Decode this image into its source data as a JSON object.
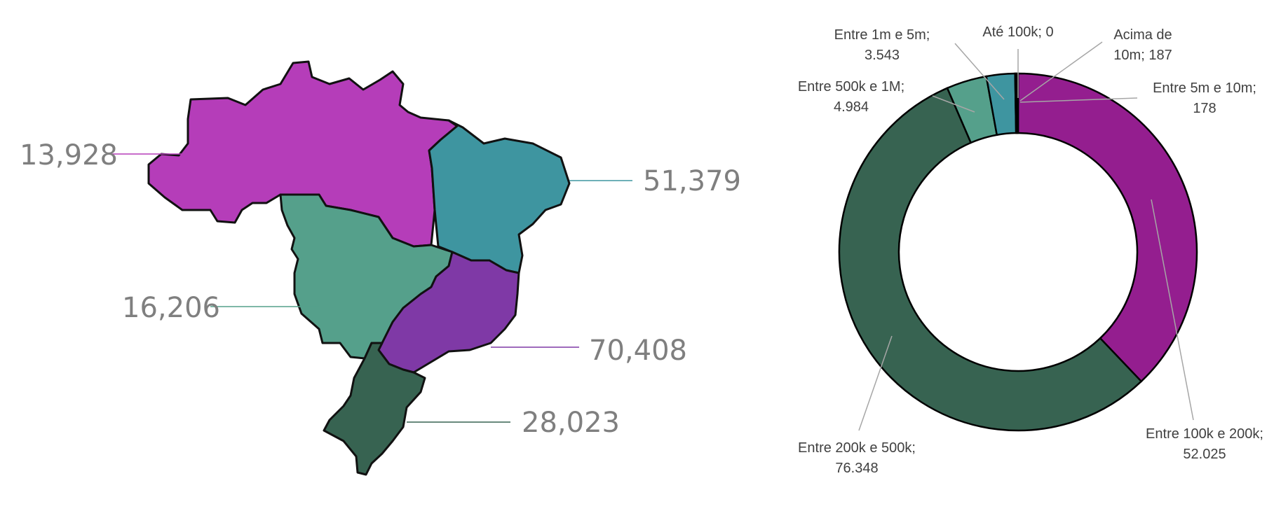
{
  "colors": {
    "norte": "#b53db9",
    "nordeste": "#3e95a0",
    "centro_oeste": "#55a08b",
    "sudeste": "#7f39a6",
    "sul": "#376351",
    "leader_gray": "#a6a6a6"
  },
  "chart_data": [
    {
      "type": "map",
      "title": "",
      "regions": [
        {
          "key": "norte",
          "value": "13,928",
          "color": "#b53db9"
        },
        {
          "key": "nordeste",
          "value": "51,379",
          "color": "#3e95a0"
        },
        {
          "key": "centro_oeste",
          "value": "16,206",
          "color": "#55a08b"
        },
        {
          "key": "sudeste",
          "value": "70,408",
          "color": "#7f39a6"
        },
        {
          "key": "sul",
          "value": "28,023",
          "color": "#376351"
        }
      ]
    },
    {
      "type": "pie",
      "title": "",
      "donut": true,
      "slices": [
        {
          "category": "Até 100k",
          "value": 0,
          "label_lines": [
            "Até 100k; 0"
          ],
          "color": "#7030a0"
        },
        {
          "category": "Entre 100k e 200k",
          "value": 52025,
          "label_lines": [
            "Entre 100k e 200k;",
            "52.025"
          ],
          "color": "#941e8f"
        },
        {
          "category": "Entre 200k e 500k",
          "value": 76348,
          "label_lines": [
            "Entre 200k e 500k;",
            "76.348"
          ],
          "color": "#376351"
        },
        {
          "category": "Entre 500k e 1M",
          "value": 4984,
          "label_lines": [
            "Entre 500k e 1M;",
            "4.984"
          ],
          "color": "#55a08b"
        },
        {
          "category": "Entre 1m e 5m",
          "value": 3543,
          "label_lines": [
            "Entre 1m e 5m;",
            "3.543"
          ],
          "color": "#3e95a0"
        },
        {
          "category": "Entre 5m e 10m",
          "value": 178,
          "label_lines": [
            "Entre 5m e 10m;",
            "178"
          ],
          "color": "#2f6f88"
        },
        {
          "category": "Acima de 10m",
          "value": 187,
          "label_lines": [
            "Acima de",
            "10m; 187"
          ],
          "color": "#1f3f4f"
        }
      ]
    }
  ]
}
